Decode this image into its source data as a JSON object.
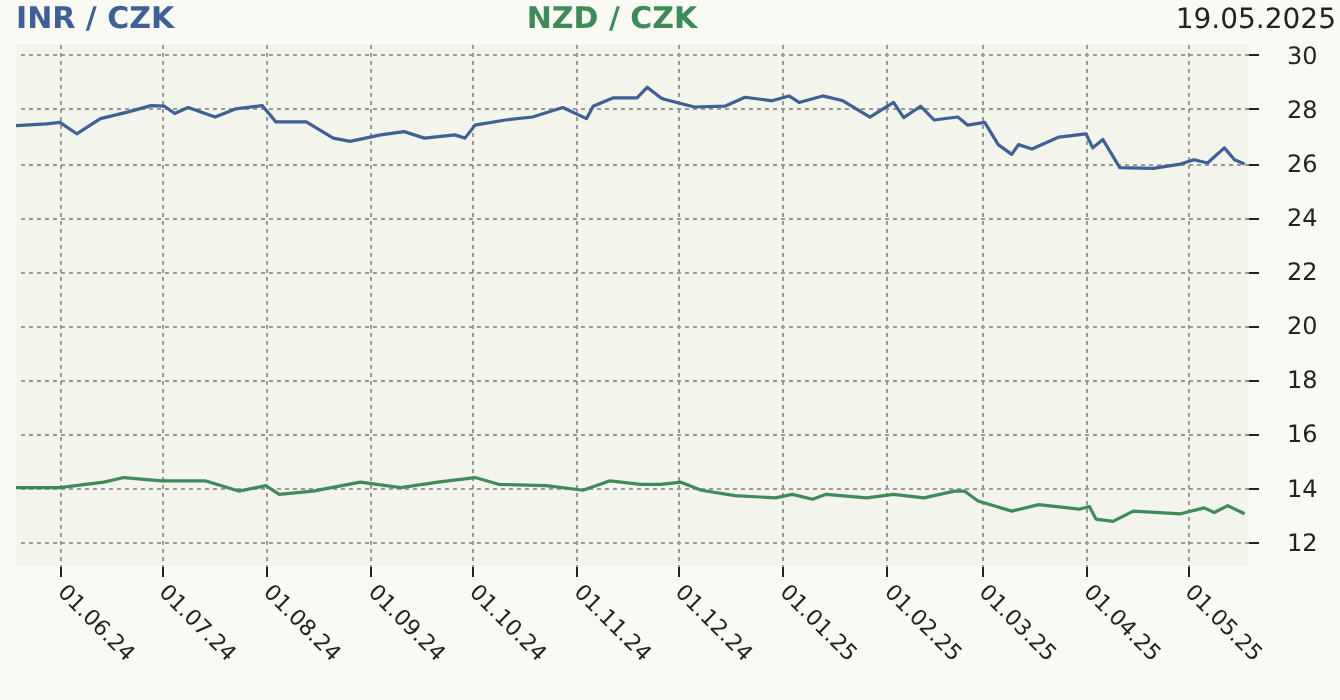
{
  "chart_data": {
    "type": "line",
    "series": [
      {
        "name": "INR / CZK",
        "color": "#3f5f95",
        "x": [
          "2024-05-19",
          "2024-05-28",
          "2024-06-01",
          "2024-06-06",
          "2024-06-13",
          "2024-06-21",
          "2024-06-28",
          "2024-07-02",
          "2024-07-05",
          "2024-07-09",
          "2024-07-17",
          "2024-07-23",
          "2024-07-31",
          "2024-08-04",
          "2024-08-13",
          "2024-08-21",
          "2024-08-26",
          "2024-09-04",
          "2024-09-11",
          "2024-09-17",
          "2024-09-26",
          "2024-09-29",
          "2024-10-02",
          "2024-10-11",
          "2024-10-19",
          "2024-10-28",
          "2024-11-04",
          "2024-11-06",
          "2024-11-12",
          "2024-11-19",
          "2024-11-22",
          "2024-11-27",
          "2024-11-26",
          "2024-12-06",
          "2024-12-15",
          "2024-12-21",
          "2024-12-29",
          "2025-01-03",
          "2025-01-06",
          "2025-01-13",
          "2025-01-19",
          "2025-01-27",
          "2025-02-03",
          "2025-02-06",
          "2025-02-11",
          "2025-02-15",
          "2025-02-22",
          "2025-02-25",
          "2025-03-02",
          "2025-03-06",
          "2025-03-10",
          "2025-03-12",
          "2025-03-16",
          "2025-03-24",
          "2025-04-01",
          "2025-04-03",
          "2025-04-06",
          "2025-04-11",
          "2025-04-21",
          "2025-04-29",
          "2025-05-03",
          "2025-05-07",
          "2025-05-12",
          "2025-05-15",
          "2025-05-18"
        ],
        "values": [
          27.38,
          27.45,
          27.5,
          27.08,
          27.64,
          27.88,
          28.12,
          28.1,
          27.83,
          28.05,
          27.7,
          28.0,
          28.12,
          27.52,
          27.52,
          26.92,
          26.8,
          27.04,
          27.16,
          26.92,
          27.04,
          26.92,
          27.4,
          27.59,
          27.7,
          28.05,
          27.64,
          28.1,
          28.41,
          28.41,
          28.8,
          28.36,
          28.41,
          28.07,
          28.1,
          28.43,
          28.3,
          28.48,
          28.24,
          28.48,
          28.3,
          27.7,
          28.24,
          27.68,
          28.1,
          27.59,
          27.7,
          27.4,
          27.5,
          26.68,
          26.32,
          26.68,
          26.52,
          26.96,
          27.08,
          26.56,
          26.87,
          25.83,
          25.8,
          25.96,
          26.12,
          26.0,
          26.56,
          26.12,
          25.96
        ]
      },
      {
        "name": "NZD / CZK",
        "color": "#3f8a5a",
        "x": [
          "2024-05-19",
          "2024-06-01",
          "2024-06-14",
          "2024-06-20",
          "2024-07-01",
          "2024-07-14",
          "2024-07-24",
          "2024-08-01",
          "2024-08-05",
          "2024-08-15",
          "2024-08-29",
          "2024-09-10",
          "2024-09-21",
          "2024-10-02",
          "2024-10-09",
          "2024-10-23",
          "2024-11-03",
          "2024-11-11",
          "2024-11-20",
          "2024-11-26",
          "2024-12-02",
          "2024-12-08",
          "2024-12-18",
          "2024-12-30",
          "2025-01-04",
          "2025-01-10",
          "2025-01-14",
          "2025-01-26",
          "2025-02-03",
          "2025-02-12",
          "2025-02-21",
          "2025-02-24",
          "2025-02-28",
          "2025-03-10",
          "2025-03-18",
          "2025-03-30",
          "2025-04-02",
          "2025-04-04",
          "2025-04-09",
          "2025-04-15",
          "2025-04-29",
          "2025-05-06",
          "2025-05-09",
          "2025-05-13",
          "2025-05-18"
        ],
        "values": [
          14.0,
          14.0,
          14.2,
          14.37,
          14.25,
          14.25,
          13.87,
          14.07,
          13.75,
          13.87,
          14.2,
          14.0,
          14.2,
          14.37,
          14.12,
          14.07,
          13.9,
          14.25,
          14.12,
          14.12,
          14.2,
          13.9,
          13.7,
          13.62,
          13.75,
          13.57,
          13.75,
          13.62,
          13.75,
          13.62,
          13.87,
          13.87,
          13.5,
          13.13,
          13.37,
          13.2,
          13.3,
          12.83,
          12.75,
          13.13,
          13.03,
          13.25,
          13.08,
          13.33,
          13.03
        ]
      }
    ],
    "xlim": [
      "2024-05-19",
      "2025-05-19"
    ],
    "xticks": [
      {
        "value": "2024-06-01",
        "label": "01.06.24"
      },
      {
        "value": "2024-07-01",
        "label": "01.07.24"
      },
      {
        "value": "2024-08-01",
        "label": "01.08.24"
      },
      {
        "value": "2024-09-01",
        "label": "01.09.24"
      },
      {
        "value": "2024-10-01",
        "label": "01.10.24"
      },
      {
        "value": "2024-11-01",
        "label": "01.11.24"
      },
      {
        "value": "2024-12-01",
        "label": "01.12.24"
      },
      {
        "value": "2025-01-01",
        "label": "01.01.25"
      },
      {
        "value": "2025-02-01",
        "label": "01.02.25"
      },
      {
        "value": "2025-03-01",
        "label": "01.03.25"
      },
      {
        "value": "2025-04-01",
        "label": "01.04.25"
      },
      {
        "value": "2025-05-01",
        "label": "01.05.25"
      }
    ],
    "ylim": [
      11.1,
      30.4
    ],
    "yticks": [
      12,
      14,
      16,
      18,
      20,
      22,
      24,
      26,
      28,
      30
    ],
    "grid": true,
    "legend": "top",
    "annotations": [
      "19.05.2025"
    ]
  }
}
